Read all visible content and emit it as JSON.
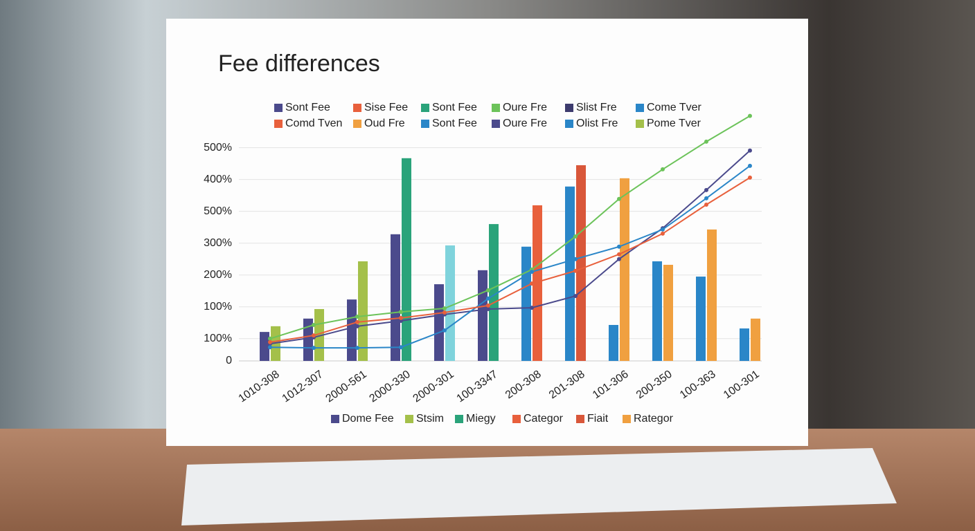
{
  "chart_data": {
    "type": "bar",
    "title": "Fee differences",
    "categories": [
      "1010-308",
      "1012-307",
      "2000-561",
      "2000-330",
      "2000-301",
      "100-3347",
      "200-308",
      "201-308",
      "101-306",
      "200-350",
      "100-363",
      "100-301"
    ],
    "ylim": [
      0,
      780
    ],
    "yticks": [
      0,
      {
        "value": 70,
        "label": "100%"
      },
      {
        "value": 170,
        "label": "100%"
      },
      {
        "value": 270,
        "label": "200%"
      },
      {
        "value": 370,
        "label": "300%"
      },
      {
        "value": 470,
        "label": "500%"
      },
      {
        "value": 570,
        "label": "400%"
      },
      {
        "value": 670,
        "label": "500%"
      }
    ],
    "grid": true,
    "series": [
      {
        "name": "Dome Fee",
        "color": "#4b4a8c",
        "colors": [
          "#4b4a8c",
          "#4b4a8c",
          "#4b4a8c",
          "#4b4a8c",
          "#4b4a8c",
          "#4b4a8c",
          "#2a86c8",
          "#2a86c8",
          "#2a86c8",
          "#2a86c8",
          "#2a86c8",
          "#2a86c8"
        ],
        "values": [
          91,
          133,
          193,
          398,
          241,
          285,
          359,
          548,
          113,
          313,
          265,
          102
        ]
      },
      {
        "name": "Stsim",
        "color": "#a4c04a",
        "values": [
          109,
          163,
          313,
          null,
          null,
          null,
          null,
          null,
          null,
          null,
          null,
          null
        ]
      },
      {
        "name": "Miegy",
        "color": "#2aa37a",
        "colors": [
          null,
          null,
          null,
          "#2aa37a",
          "#7fd3dc",
          "#2aa37a",
          null,
          null,
          null,
          null,
          null,
          null
        ],
        "values": [
          null,
          null,
          null,
          637,
          363,
          430,
          null,
          null,
          null,
          null,
          null,
          null
        ]
      },
      {
        "name": "Categor",
        "color": "#e8603c",
        "values": [
          null,
          null,
          null,
          null,
          null,
          null,
          489,
          null,
          null,
          null,
          null,
          null
        ]
      },
      {
        "name": "Fiait",
        "color": "#d9573a",
        "values": [
          null,
          null,
          null,
          null,
          null,
          null,
          null,
          615,
          null,
          null,
          null,
          null
        ]
      },
      {
        "name": "Rategor",
        "color": "#f0a040",
        "values": [
          null,
          null,
          null,
          null,
          null,
          null,
          null,
          null,
          574,
          302,
          413,
          133
        ]
      }
    ],
    "top_legend": [
      {
        "name": "Sont Fee",
        "color": "#4b4a8c"
      },
      {
        "name": "Sise Fee",
        "color": "#e8603c"
      },
      {
        "name": "Sont Fee",
        "color": "#2aa37a"
      },
      {
        "name": "Oure Fre",
        "color": "#6cc35a"
      },
      {
        "name": "Slist Fre",
        "color": "#3d3b6e"
      },
      {
        "name": "Come Tver",
        "color": "#2a86c8"
      },
      {
        "name": "Comd Tven",
        "color": "#e8603c"
      },
      {
        "name": "Oud Fre",
        "color": "#f0a040"
      },
      {
        "name": "Sont Fee",
        "color": "#2a86c8"
      },
      {
        "name": "Oure Fre",
        "color": "#4b4a8c"
      },
      {
        "name": "Olist Fre",
        "color": "#2a86c8"
      },
      {
        "name": "Pome Tver",
        "color": "#a4c04a"
      }
    ],
    "lines": [
      {
        "legend_entry": 3,
        "color": "#6cc35a",
        "values": [
          70,
          113,
          139,
          154,
          165,
          222,
          287,
          391,
          509,
          602,
          689,
          770
        ]
      },
      {
        "legend_entry": 4,
        "color": "#4b4a8c",
        "values": [
          54,
          74,
          109,
          126,
          146,
          163,
          167,
          204,
          320,
          417,
          537,
          661
        ]
      },
      {
        "legend_entry": 5,
        "color": "#2a86c8",
        "values": [
          43,
          41,
          41,
          43,
          96,
          196,
          280,
          320,
          359,
          413,
          511,
          613
        ]
      },
      {
        "legend_entry": 1,
        "color": "#e8603c",
        "values": [
          59,
          80,
          122,
          135,
          152,
          174,
          243,
          283,
          335,
          400,
          491,
          576
        ]
      }
    ]
  }
}
